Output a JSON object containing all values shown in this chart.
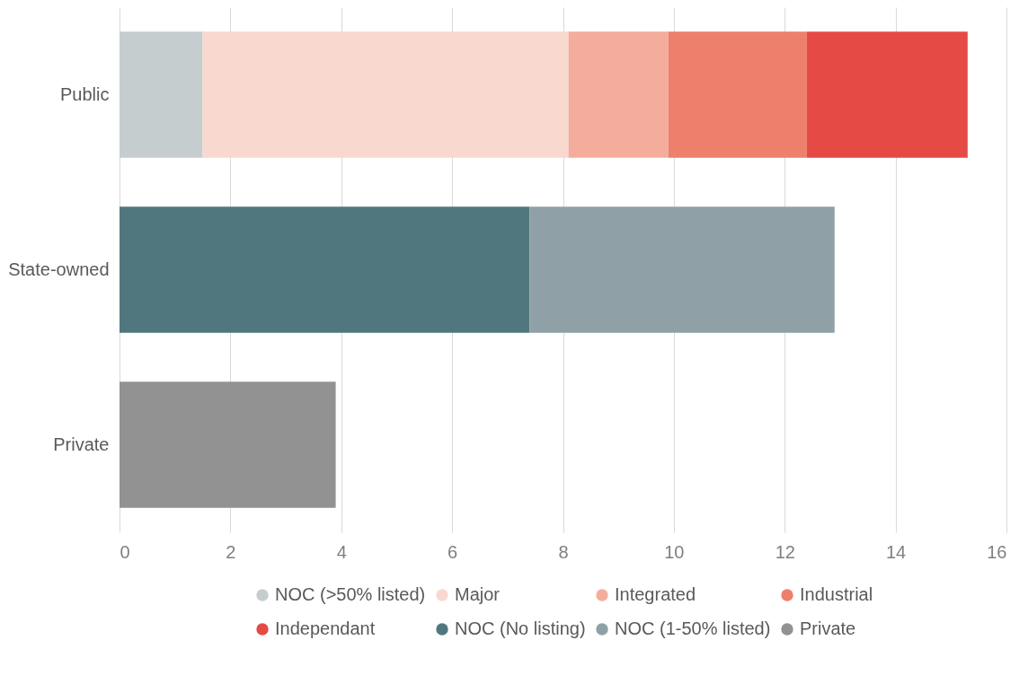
{
  "chart_data": {
    "type": "bar",
    "orientation": "horizontal",
    "stacked": true,
    "categories": [
      "Public",
      "State-owned",
      "Private"
    ],
    "series": [
      {
        "name": "NOC (>50% listed)",
        "color": "#c5cdcf",
        "values": [
          1.5,
          null,
          null
        ]
      },
      {
        "name": "Major",
        "color": "#f9d9cf",
        "values": [
          6.6,
          null,
          null
        ]
      },
      {
        "name": "Integrated",
        "color": "#f4ad9c",
        "values": [
          1.8,
          null,
          null
        ]
      },
      {
        "name": "Industrial",
        "color": "#ee7f6d",
        "values": [
          2.5,
          null,
          null
        ]
      },
      {
        "name": "Independant",
        "color": "#e64a45",
        "values": [
          2.9,
          null,
          null
        ]
      },
      {
        "name": "NOC (No listing)",
        "color": "#51777e",
        "values": [
          null,
          7.4,
          null
        ]
      },
      {
        "name": "NOC (1-50% listed)",
        "color": "#8fa1a6",
        "values": [
          null,
          5.5,
          null
        ]
      },
      {
        "name": "Private",
        "color": "#929292",
        "values": [
          null,
          null,
          3.9
        ]
      }
    ],
    "xlim": [
      0,
      16
    ],
    "xticks": [
      0,
      2,
      4,
      6,
      8,
      10,
      12,
      14,
      16
    ],
    "grid": "x",
    "legend": "bottom"
  }
}
